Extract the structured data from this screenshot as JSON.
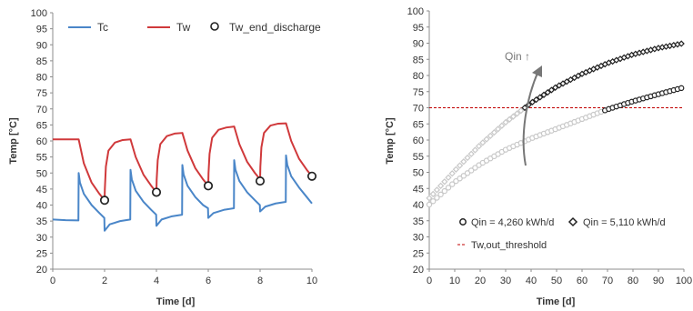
{
  "chart_data": [
    {
      "type": "line",
      "title": "",
      "xlabel": "Time [d]",
      "ylabel": "Temp [°C]",
      "xlim": [
        0,
        10
      ],
      "ylim": [
        20,
        100
      ],
      "xticks": [
        "0",
        "2",
        "4",
        "6",
        "8",
        "10"
      ],
      "yticks": [
        "20",
        "25",
        "30",
        "35",
        "40",
        "45",
        "50",
        "55",
        "60",
        "65",
        "70",
        "75",
        "80",
        "85",
        "90",
        "95",
        "100"
      ],
      "grid": false,
      "legend": "top",
      "legend_entries": [
        "Tc",
        "Tw",
        "Tw_end_discharge"
      ],
      "colors": {
        "Tc": "#4a86c8",
        "Tw": "#d0393b",
        "markers": "#222222"
      },
      "series": [
        {
          "name": "Tc",
          "x": [
            0,
            0.5,
            0.99,
            1.0,
            1.05,
            1.2,
            1.5,
            1.8,
            1.99,
            2.0,
            2.2,
            2.6,
            2.99,
            3.0,
            3.05,
            3.2,
            3.5,
            3.8,
            3.99,
            4.0,
            4.2,
            4.6,
            4.99,
            5.0,
            5.05,
            5.2,
            5.5,
            5.8,
            5.99,
            6.0,
            6.2,
            6.6,
            6.99,
            7.0,
            7.05,
            7.2,
            7.5,
            7.8,
            7.99,
            8.0,
            8.2,
            8.6,
            8.99,
            9.0,
            9.05,
            9.2,
            9.5,
            9.8,
            10.0
          ],
          "values": [
            35.5,
            35.3,
            35.2,
            50.0,
            47.0,
            43.5,
            40.0,
            37.5,
            36.0,
            32.0,
            34.0,
            35.0,
            35.5,
            51.0,
            48.0,
            44.5,
            41.0,
            38.5,
            37.0,
            33.5,
            35.5,
            36.5,
            37.0,
            52.5,
            49.5,
            46.0,
            42.5,
            40.0,
            39.0,
            36.0,
            37.5,
            38.5,
            39.0,
            54.0,
            51.0,
            47.5,
            44.0,
            41.5,
            40.0,
            38.0,
            39.5,
            40.5,
            41.0,
            55.5,
            52.5,
            49.0,
            45.5,
            42.5,
            40.5
          ]
        },
        {
          "name": "Tw",
          "x": [
            0,
            0.5,
            1.0,
            1.2,
            1.5,
            1.8,
            2.0,
            2.01,
            2.05,
            2.15,
            2.4,
            2.7,
            3.0,
            3.2,
            3.5,
            3.8,
            4.0,
            4.01,
            4.05,
            4.15,
            4.4,
            4.7,
            5.0,
            5.2,
            5.5,
            5.8,
            6.0,
            6.01,
            6.05,
            6.15,
            6.4,
            6.7,
            7.0,
            7.2,
            7.5,
            7.8,
            8.0,
            8.01,
            8.05,
            8.15,
            8.4,
            8.7,
            9.0,
            9.2,
            9.5,
            9.8,
            10.0
          ],
          "values": [
            60.5,
            60.5,
            60.5,
            53.0,
            47.0,
            43.5,
            41.5,
            45.0,
            52.0,
            57.0,
            59.5,
            60.3,
            60.5,
            55.0,
            49.5,
            46.0,
            44.0,
            48.0,
            54.0,
            59.0,
            61.5,
            62.3,
            62.5,
            57.0,
            51.5,
            48.0,
            46.0,
            50.0,
            56.0,
            61.0,
            63.5,
            64.2,
            64.5,
            59.0,
            53.5,
            50.0,
            48.0,
            52.0,
            58.0,
            62.5,
            64.8,
            65.4,
            65.5,
            60.0,
            54.5,
            51.0,
            49.0
          ]
        },
        {
          "name": "Tw_end_discharge",
          "x": [
            2,
            4,
            6,
            8,
            10
          ],
          "values": [
            41.5,
            44.0,
            46.0,
            47.5,
            49.0
          ]
        }
      ]
    },
    {
      "type": "scatter",
      "title": "",
      "xlabel": "Time [d]",
      "ylabel": "Temp [°C]",
      "xlim": [
        0,
        100
      ],
      "ylim": [
        20,
        100
      ],
      "xticks": [
        "0",
        "10",
        "20",
        "30",
        "40",
        "50",
        "60",
        "70",
        "80",
        "90",
        "100"
      ],
      "yticks": [
        "20",
        "25",
        "30",
        "35",
        "40",
        "45",
        "50",
        "55",
        "60",
        "65",
        "70",
        "75",
        "80",
        "85",
        "90",
        "95",
        "100"
      ],
      "grid": false,
      "legend": "bottom-right",
      "legend_entries": [
        "Qin = 4,260 kWh/d",
        "Qin = 5,110 kWh/d",
        "Tw,out_threshold"
      ],
      "annotation": "Qin ↑",
      "threshold": 70,
      "colors": {
        "markers": "#222222",
        "faded": "#c8c8c8",
        "threshold": "#c00000",
        "arrow": "#777777"
      },
      "series": [
        {
          "name": "Qin = 4,260 kWh/d",
          "x": [
            0,
            10,
            20,
            30,
            40,
            50,
            60,
            70,
            80,
            90,
            100
          ],
          "values": [
            40.0,
            47.0,
            52.5,
            57.0,
            60.5,
            63.5,
            66.5,
            69.5,
            72.0,
            74.2,
            76.3
          ],
          "highlight_from_x": 68
        },
        {
          "name": "Qin = 5,110 kWh/d",
          "x": [
            0,
            10,
            20,
            30,
            40,
            50,
            60,
            70,
            80,
            90,
            100
          ],
          "values": [
            42.0,
            50.5,
            58.5,
            65.5,
            71.5,
            76.5,
            80.5,
            83.8,
            86.5,
            88.5,
            90.0
          ],
          "highlight_from_x": 37
        },
        {
          "name": "Tw,out_threshold",
          "x": [
            0,
            100
          ],
          "values": [
            70,
            70
          ]
        }
      ]
    }
  ]
}
